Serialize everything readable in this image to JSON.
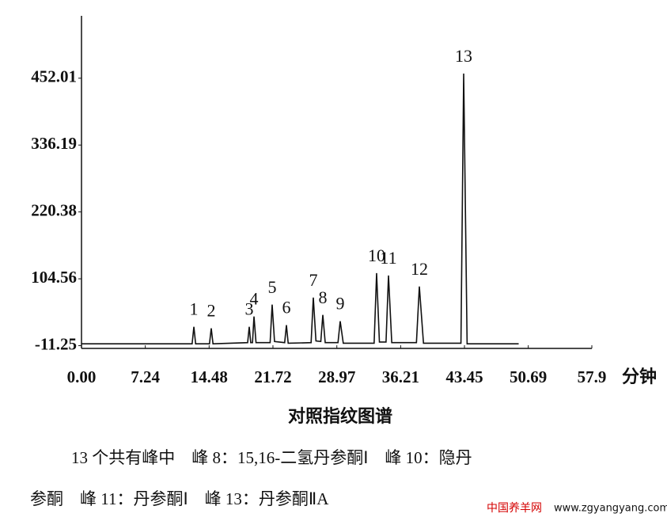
{
  "chart_data": {
    "type": "line",
    "x": [
      0,
      12.55,
      12.75,
      12.95,
      14.52,
      14.72,
      14.92,
      18.85,
      19.03,
      19.2,
      19.4,
      19.57,
      19.8,
      21.4,
      21.63,
      21.9,
      23.05,
      23.25,
      23.45,
      26.05,
      26.3,
      26.6,
      27.15,
      27.38,
      27.65,
      29.1,
      29.35,
      29.7,
      33.2,
      33.48,
      33.8,
      34.55,
      34.83,
      35.2,
      38.0,
      38.33,
      38.8,
      43.05,
      43.36,
      43.75,
      49.6
    ],
    "series": [
      {
        "color": "#111111",
        "values": [
          -8,
          -8,
          21.5,
          -8,
          -8,
          18.8,
          -8,
          -6,
          21.5,
          -6,
          -6,
          39.3,
          -6,
          -6,
          59.8,
          -4,
          -6,
          24.3,
          -7,
          -6,
          72.1,
          -3,
          -4,
          42,
          -6,
          -6,
          31.1,
          -7,
          -7,
          114.4,
          -5,
          -5,
          110.3,
          -6,
          -6,
          91.2,
          -7,
          -7,
          460,
          -8,
          -8
        ]
      }
    ],
    "annotations": [
      {
        "text": "1",
        "x": 12.75,
        "y": 21.5
      },
      {
        "text": "2",
        "x": 14.72,
        "y": 18.8
      },
      {
        "text": "3",
        "x": 19.03,
        "y": 21.5
      },
      {
        "text": "4",
        "x": 19.57,
        "y": 39.3
      },
      {
        "text": "5",
        "x": 21.63,
        "y": 59.8
      },
      {
        "text": "6",
        "x": 23.25,
        "y": 24.3
      },
      {
        "text": "7",
        "x": 26.3,
        "y": 72.1
      },
      {
        "text": "8",
        "x": 27.38,
        "y": 42
      },
      {
        "text": "9",
        "x": 29.35,
        "y": 31.1
      },
      {
        "text": "10",
        "x": 33.48,
        "y": 114.4
      },
      {
        "text": "11",
        "x": 34.83,
        "y": 110.3
      },
      {
        "text": "12",
        "x": 38.33,
        "y": 91.2
      },
      {
        "text": "13",
        "x": 43.36,
        "y": 460
      }
    ],
    "xlabel": "分钟",
    "xlim": [
      0,
      57.9
    ],
    "xticks": [
      {
        "value": 0,
        "label": "0.00"
      },
      7.24,
      14.48,
      21.72,
      28.97,
      36.21,
      43.45,
      50.69,
      57.9
    ],
    "ylim": [
      -16,
      560
    ],
    "yticks": [
      -11.25,
      104.56,
      220.38,
      336.19,
      452.01
    ],
    "caption": "对照指纹图谱"
  },
  "notes": [
    "13 个共有峰中　峰 8：15,16-二氢丹参酮Ⅰ　峰 10：隐丹",
    "参酮　峰 11：丹参酮Ⅰ　峰 13：丹参酮ⅡA"
  ],
  "watermark": [
    "中国养羊网",
    "www.zgyangyang.com"
  ]
}
